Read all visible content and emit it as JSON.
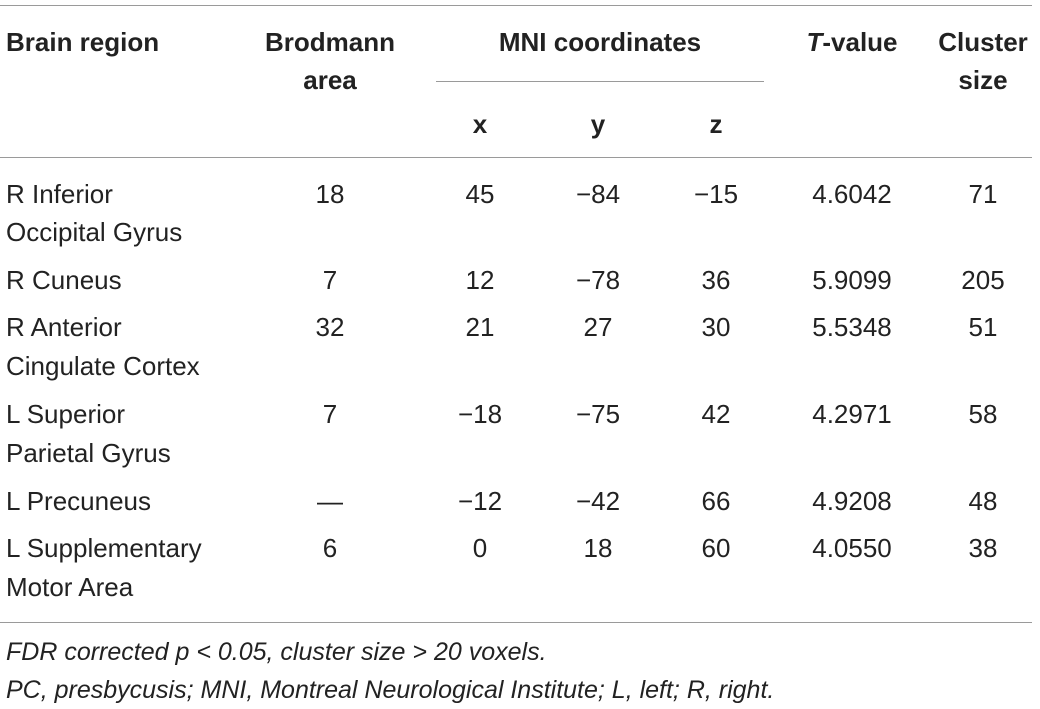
{
  "table": {
    "headers": {
      "brain_region": "Brain region",
      "brodmann_line1": "Brodmann",
      "brodmann_line2": "area",
      "mni": "MNI coordinates",
      "x": "x",
      "y": "y",
      "z": "z",
      "t_value_italic": "T",
      "t_value_rest": "-value",
      "cluster_line1": "Cluster",
      "cluster_line2": "size"
    },
    "rows": [
      {
        "region_line1": "R Inferior",
        "region_line2": "Occipital Gyrus",
        "ba": "18",
        "x": "45",
        "y": "−84",
        "z": "−15",
        "t": "4.6042",
        "size": "71"
      },
      {
        "region_line1": "R Cuneus",
        "region_line2": "",
        "ba": "7",
        "x": "12",
        "y": "−78",
        "z": "36",
        "t": "5.9099",
        "size": "205"
      },
      {
        "region_line1": "R Anterior",
        "region_line2": "Cingulate Cortex",
        "ba": "32",
        "x": "21",
        "y": "27",
        "z": "30",
        "t": "5.5348",
        "size": "51"
      },
      {
        "region_line1": "L Superior",
        "region_line2": "Parietal Gyrus",
        "ba": "7",
        "x": "−18",
        "y": "−75",
        "z": "42",
        "t": "4.2971",
        "size": "58"
      },
      {
        "region_line1": "L Precuneus",
        "region_line2": "",
        "ba": "—",
        "x": "−12",
        "y": "−42",
        "z": "66",
        "t": "4.9208",
        "size": "48"
      },
      {
        "region_line1": "L Supplementary",
        "region_line2": "Motor Area",
        "ba": "6",
        "x": "0",
        "y": "18",
        "z": "60",
        "t": "4.0550",
        "size": "38"
      }
    ],
    "footnotes": [
      "FDR corrected p < 0.05, cluster size > 20 voxels.",
      "PC, presbycusis; MNI, Montreal Neurological Institute; L, left; R, right."
    ]
  }
}
